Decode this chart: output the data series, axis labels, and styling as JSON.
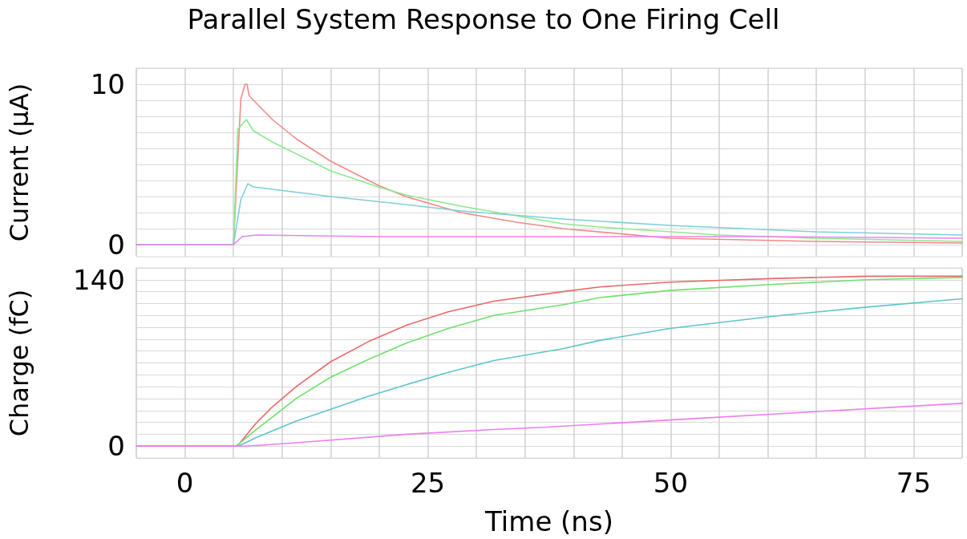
{
  "chart_data": [
    {
      "type": "line",
      "title": "Parallel System Response to One Firing Cell",
      "ylabel": "Current (µA)",
      "grid": true,
      "marker": "none",
      "line_style": "solid",
      "tick_labels": "y",
      "xlim": [
        -5,
        80
      ],
      "xticks": [
        {
          "value": -5,
          "label": null
        },
        {
          "value": 0,
          "label": null
        },
        {
          "value": 5,
          "label": null
        },
        {
          "value": 10,
          "label": null
        },
        {
          "value": 15,
          "label": null
        },
        {
          "value": 20,
          "label": null
        },
        {
          "value": 25,
          "label": null
        },
        {
          "value": 30,
          "label": null
        },
        {
          "value": 35,
          "label": null
        },
        {
          "value": 40,
          "label": null
        },
        {
          "value": 45,
          "label": null
        },
        {
          "value": 50,
          "label": null
        },
        {
          "value": 55,
          "label": null
        },
        {
          "value": 60,
          "label": null
        },
        {
          "value": 65,
          "label": null
        },
        {
          "value": 70,
          "label": null
        },
        {
          "value": 75,
          "label": null
        },
        {
          "value": 80,
          "label": null
        }
      ],
      "ylim": [
        -0.75,
        11
      ],
      "yticks": [
        {
          "value": 0,
          "label": "0"
        },
        {
          "value": 1,
          "label": null
        },
        {
          "value": 2,
          "label": null
        },
        {
          "value": 3,
          "label": null
        },
        {
          "value": 4,
          "label": null
        },
        {
          "value": 5,
          "label": null
        },
        {
          "value": 6,
          "label": null
        },
        {
          "value": 7,
          "label": null
        },
        {
          "value": 8,
          "label": null
        },
        {
          "value": 9,
          "label": null
        },
        {
          "value": 10,
          "label": "10"
        },
        {
          "value": 11,
          "label": null
        }
      ],
      "series": [
        {
          "color": "#f08a8a",
          "x": [
            -5,
            5,
            5.76,
            6.2,
            6.4,
            6.6,
            6.9,
            9.0,
            11.45,
            15.0,
            19.9,
            22.7,
            28.4,
            34.1,
            38.9,
            49.9,
            64.9,
            80
          ],
          "values": [
            0,
            0,
            9.1,
            10,
            10,
            9.3,
            9.1,
            7.8,
            6.6,
            5.2,
            3.7,
            3.0,
            2.0,
            1.4,
            1.0,
            0.4,
            0.2,
            0.1
          ]
        },
        {
          "color": "#8ee88e",
          "x": [
            -5,
            5,
            5.45,
            6.33,
            7.04,
            9.0,
            15.0,
            19.9,
            22.7,
            28.4,
            34.1,
            38.9,
            42.7,
            54.9,
            64.9,
            80
          ],
          "values": [
            0,
            0,
            7.2,
            7.8,
            7.1,
            6.4,
            4.6,
            3.6,
            3.1,
            2.4,
            1.8,
            1.3,
            1.1,
            0.6,
            0.4,
            0.2
          ]
        },
        {
          "color": "#80cfd4",
          "x": [
            -5,
            5,
            5.76,
            6.47,
            7.04,
            15,
            22.7,
            28.4,
            38.9,
            49.9,
            64.9,
            80
          ],
          "values": [
            0,
            0,
            2.8,
            3.8,
            3.6,
            3.0,
            2.5,
            2.1,
            1.6,
            1.2,
            0.8,
            0.6
          ]
        },
        {
          "color": "#ee82ee",
          "x": [
            -5,
            5,
            5.9,
            7.4,
            20,
            40,
            60,
            80
          ],
          "values": [
            0,
            0,
            0.5,
            0.6,
            0.5,
            0.5,
            0.5,
            0.4
          ]
        }
      ]
    },
    {
      "type": "line",
      "xlabel": "Time (ns)",
      "ylabel": "Charge (fC)",
      "grid": true,
      "marker": "none",
      "line_style": "solid",
      "xlim": [
        -5,
        80
      ],
      "xticks": [
        {
          "value": -5,
          "label": null
        },
        {
          "value": 0,
          "label": "0"
        },
        {
          "value": 5,
          "label": null
        },
        {
          "value": 10,
          "label": null
        },
        {
          "value": 15,
          "label": null
        },
        {
          "value": 20,
          "label": null
        },
        {
          "value": 25,
          "label": "25"
        },
        {
          "value": 30,
          "label": null
        },
        {
          "value": 35,
          "label": null
        },
        {
          "value": 40,
          "label": null
        },
        {
          "value": 45,
          "label": null
        },
        {
          "value": 50,
          "label": "50"
        },
        {
          "value": 55,
          "label": null
        },
        {
          "value": 60,
          "label": null
        },
        {
          "value": 65,
          "label": null
        },
        {
          "value": 70,
          "label": null
        },
        {
          "value": 75,
          "label": "75"
        },
        {
          "value": 80,
          "label": null
        }
      ],
      "ylim": [
        -10,
        150
      ],
      "yticks": [
        {
          "value": -10,
          "label": null
        },
        {
          "value": 0,
          "label": "0"
        },
        {
          "value": 10,
          "label": null
        },
        {
          "value": 20,
          "label": null
        },
        {
          "value": 30,
          "label": null
        },
        {
          "value": 40,
          "label": null
        },
        {
          "value": 50,
          "label": null
        },
        {
          "value": 60,
          "label": null
        },
        {
          "value": 70,
          "label": null
        },
        {
          "value": 80,
          "label": null
        },
        {
          "value": 90,
          "label": null
        },
        {
          "value": 100,
          "label": null
        },
        {
          "value": 110,
          "label": null
        },
        {
          "value": 120,
          "label": null
        },
        {
          "value": 130,
          "label": null
        },
        {
          "value": 140,
          "label": "140"
        },
        {
          "value": 150,
          "label": null
        }
      ],
      "series": [
        {
          "color": "#e86868",
          "x": [
            -5,
            5.3,
            5.6,
            7.3,
            9.0,
            11.45,
            15,
            18.9,
            22.9,
            27.1,
            31.8,
            38.9,
            42.7,
            49.9,
            60.2,
            70.2,
            80
          ],
          "values": [
            0,
            0,
            2,
            19,
            33,
            50,
            71,
            88,
            102,
            113,
            122,
            130,
            134,
            138,
            141,
            143,
            143
          ]
        },
        {
          "color": "#6ee06e",
          "x": [
            -5,
            5.3,
            7.04,
            11.45,
            15,
            18.9,
            22.9,
            27.1,
            31.8,
            38.9,
            42.7,
            49.9,
            60.2,
            70.2,
            80
          ],
          "values": [
            0,
            0,
            12,
            40,
            58,
            73,
            87,
            99,
            110,
            119,
            125,
            131,
            136,
            140,
            142
          ]
        },
        {
          "color": "#5fc4c8",
          "x": [
            -5,
            5.5,
            7.3,
            11.45,
            15,
            18.9,
            22.9,
            27.1,
            31.8,
            38.9,
            42.7,
            49.9,
            60.2,
            70.2,
            80
          ],
          "values": [
            0,
            0,
            7,
            21,
            31,
            42,
            52,
            62,
            72,
            82,
            89,
            99,
            109,
            117,
            124
          ]
        },
        {
          "color": "#ee7cee",
          "x": [
            -5,
            6,
            8.3,
            15,
            22.9,
            31.8,
            37.2,
            49.9,
            64.9,
            80
          ],
          "values": [
            0,
            0,
            1,
            5,
            10,
            14,
            16,
            22,
            29,
            36
          ]
        }
      ]
    }
  ]
}
